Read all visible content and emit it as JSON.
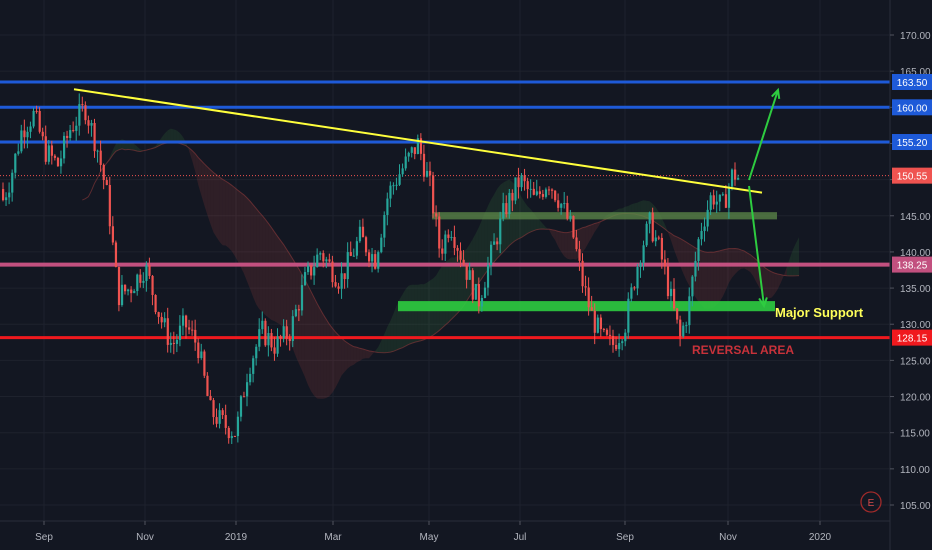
{
  "chart_data": {
    "type": "candlestick",
    "y_ticks": [
      "170.00",
      "165.00",
      "160.00",
      "155.00",
      "150.00",
      "145.00",
      "140.00",
      "135.00",
      "130.00",
      "125.00",
      "120.00",
      "115.00",
      "110.00",
      "105.00"
    ],
    "y_range": [
      104,
      173
    ],
    "x_ticks": [
      "Sep",
      "Nov",
      "2019",
      "Mar",
      "May",
      "Jul",
      "Sep",
      "Nov",
      "2020"
    ],
    "current_price": {
      "value": 150.55,
      "label": "150.55",
      "color": "#ef5350"
    },
    "levels": [
      {
        "name": "resistance-163",
        "value": 163.5,
        "label": "163.50",
        "color": "#1e5ad8"
      },
      {
        "name": "resistance-160",
        "value": 160.0,
        "label": "160.00",
        "color": "#1e5ad8"
      },
      {
        "name": "resistance-155",
        "value": 155.2,
        "label": "155.20",
        "color": "#1e5ad8"
      },
      {
        "name": "level-138",
        "value": 138.25,
        "label": "138.25",
        "color": "#c2507f"
      },
      {
        "name": "support-128",
        "value": 128.15,
        "label": "128.15",
        "color": "#f0191e"
      }
    ],
    "annotations": {
      "major_support": {
        "text": "Major Support",
        "color": "#ffff5a"
      },
      "reversal_area": {
        "text": "REVERSAL AREA",
        "color": "#c8323a"
      }
    },
    "zones": [
      {
        "name": "major-support-zone",
        "bottom": 131.8,
        "top": 133.2,
        "color": "#2ecc40"
      },
      {
        "name": "upper-zone",
        "bottom": 144.5,
        "top": 145.5,
        "color": "#5d8a4a"
      }
    ],
    "trendline": {
      "color": "#ffff3c",
      "from_price": 162.5,
      "to_price": 148.2
    },
    "colors": {
      "up": "#26a69a",
      "down": "#ef5350",
      "arrow": "#2ecc40"
    },
    "icons": {
      "events": "E"
    }
  }
}
